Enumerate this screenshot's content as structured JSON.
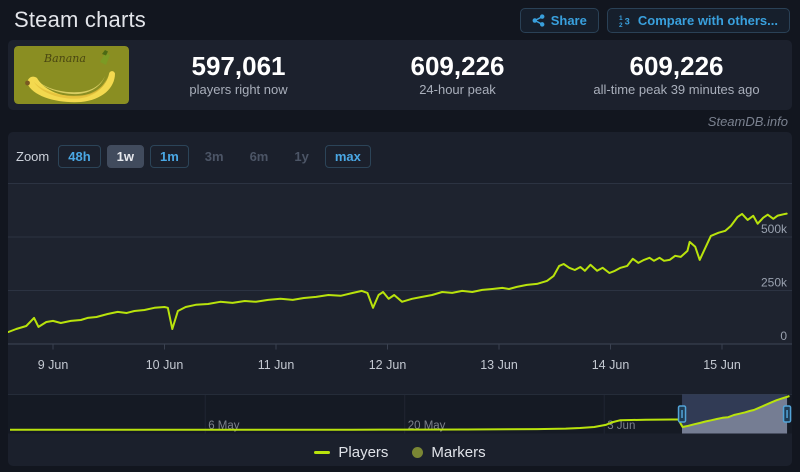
{
  "header": {
    "title": "Steam charts",
    "share_label": "Share",
    "compare_label": "Compare with others..."
  },
  "stats": {
    "app_name": "Banana",
    "items": [
      {
        "value": "597,061",
        "label": "players right now"
      },
      {
        "value": "609,226",
        "label": "24-hour peak"
      },
      {
        "value": "609,226",
        "label": "all-time peak 39 minutes ago"
      }
    ]
  },
  "watermark": "SteamDB.info",
  "zoom_controls": {
    "label": "Zoom",
    "buttons": [
      {
        "label": "48h",
        "state": "enabled"
      },
      {
        "label": "1w",
        "state": "active"
      },
      {
        "label": "1m",
        "state": "enabled"
      },
      {
        "label": "3m",
        "state": "disabled"
      },
      {
        "label": "6m",
        "state": "disabled"
      },
      {
        "label": "1y",
        "state": "disabled"
      },
      {
        "label": "max",
        "state": "enabled"
      }
    ]
  },
  "colors": {
    "background": "#12161f",
    "panel": "#1b202c",
    "accent_blue": "#4aa7e4",
    "line": "#b9e30c",
    "marker_dot": "#7a8634",
    "grid": "#2c3342",
    "capsule_bg": "#8a8e22",
    "banana": "#f3d94f"
  },
  "chart_data": {
    "type": "line",
    "unit": "players",
    "legend": [
      "Players",
      "Markers"
    ],
    "markers_label": "Markers",
    "y_axis": {
      "ticks": [
        {
          "label": "500k",
          "value": 500000
        },
        {
          "label": "250k",
          "value": 250000
        },
        {
          "label": "0",
          "value": 0
        }
      ],
      "top_gridline_value": 750000,
      "ylim": [
        0,
        780000
      ]
    },
    "x_axis": {
      "ticks": [
        {
          "label": "9 Jun",
          "day": 9
        },
        {
          "label": "10 Jun",
          "day": 10
        },
        {
          "label": "11 Jun",
          "day": 11
        },
        {
          "label": "12 Jun",
          "day": 12
        },
        {
          "label": "13 Jun",
          "day": 13
        },
        {
          "label": "14 Jun",
          "day": 14
        },
        {
          "label": "15 Jun",
          "day": 15
        }
      ]
    },
    "series": [
      {
        "name": "Players",
        "color": "#b9e30c",
        "points": [
          [
            8.6,
            56000
          ],
          [
            8.67,
            70000
          ],
          [
            8.76,
            84000
          ],
          [
            8.83,
            122000
          ],
          [
            8.87,
            80000
          ],
          [
            8.94,
            103000
          ],
          [
            9.0,
            108000
          ],
          [
            9.07,
            98000
          ],
          [
            9.16,
            108000
          ],
          [
            9.25,
            112000
          ],
          [
            9.31,
            122000
          ],
          [
            9.39,
            126000
          ],
          [
            9.49,
            140000
          ],
          [
            9.58,
            150000
          ],
          [
            9.66,
            145000
          ],
          [
            9.73,
            154000
          ],
          [
            9.82,
            159000
          ],
          [
            9.91,
            169000
          ],
          [
            10.0,
            173000
          ],
          [
            10.03,
            169000
          ],
          [
            10.07,
            70000
          ],
          [
            10.12,
            154000
          ],
          [
            10.19,
            173000
          ],
          [
            10.28,
            183000
          ],
          [
            10.39,
            187000
          ],
          [
            10.5,
            197000
          ],
          [
            10.61,
            192000
          ],
          [
            10.72,
            201000
          ],
          [
            10.82,
            197000
          ],
          [
            10.93,
            206000
          ],
          [
            11.04,
            211000
          ],
          [
            11.15,
            206000
          ],
          [
            11.25,
            215000
          ],
          [
            11.36,
            220000
          ],
          [
            11.47,
            229000
          ],
          [
            11.58,
            225000
          ],
          [
            11.69,
            239000
          ],
          [
            11.77,
            248000
          ],
          [
            11.82,
            239000
          ],
          [
            11.87,
            169000
          ],
          [
            11.92,
            229000
          ],
          [
            11.96,
            243000
          ],
          [
            12.01,
            211000
          ],
          [
            12.06,
            229000
          ],
          [
            12.13,
            197000
          ],
          [
            12.22,
            211000
          ],
          [
            12.31,
            220000
          ],
          [
            12.4,
            229000
          ],
          [
            12.49,
            243000
          ],
          [
            12.58,
            239000
          ],
          [
            12.67,
            248000
          ],
          [
            12.76,
            243000
          ],
          [
            12.85,
            253000
          ],
          [
            12.94,
            257000
          ],
          [
            13.03,
            262000
          ],
          [
            13.09,
            257000
          ],
          [
            13.16,
            267000
          ],
          [
            13.25,
            276000
          ],
          [
            13.34,
            281000
          ],
          [
            13.43,
            295000
          ],
          [
            13.49,
            318000
          ],
          [
            13.54,
            365000
          ],
          [
            13.58,
            374000
          ],
          [
            13.63,
            356000
          ],
          [
            13.68,
            346000
          ],
          [
            13.73,
            360000
          ],
          [
            13.77,
            342000
          ],
          [
            13.82,
            370000
          ],
          [
            13.88,
            342000
          ],
          [
            13.93,
            356000
          ],
          [
            13.99,
            332000
          ],
          [
            14.04,
            342000
          ],
          [
            14.09,
            356000
          ],
          [
            14.15,
            365000
          ],
          [
            14.2,
            398000
          ],
          [
            14.25,
            379000
          ],
          [
            14.3,
            393000
          ],
          [
            14.35,
            403000
          ],
          [
            14.39,
            389000
          ],
          [
            14.44,
            403000
          ],
          [
            14.48,
            389000
          ],
          [
            14.53,
            393000
          ],
          [
            14.58,
            412000
          ],
          [
            14.63,
            407000
          ],
          [
            14.69,
            435000
          ],
          [
            14.71,
            477000
          ],
          [
            14.76,
            454000
          ],
          [
            14.8,
            393000
          ],
          [
            14.85,
            449000
          ],
          [
            14.9,
            505000
          ],
          [
            14.97,
            520000
          ],
          [
            15.03,
            529000
          ],
          [
            15.08,
            552000
          ],
          [
            15.14,
            594000
          ],
          [
            15.18,
            608000
          ],
          [
            15.23,
            580000
          ],
          [
            15.28,
            599000
          ],
          [
            15.32,
            562000
          ],
          [
            15.37,
            590000
          ],
          [
            15.41,
            604000
          ],
          [
            15.46,
            585000
          ],
          [
            15.5,
            600000
          ],
          [
            15.55,
            606000
          ],
          [
            15.58,
            609226
          ]
        ]
      }
    ],
    "navigator": {
      "ticks": [
        {
          "label": "6 May",
          "day": 13.7
        },
        {
          "label": "20 May",
          "day": 27.7
        },
        {
          "label": "3 Jun",
          "day": 41.7
        }
      ],
      "selection_day_range": [
        47.16,
        54.53
      ],
      "points": [
        [
          0,
          60000
        ],
        [
          6,
          60000
        ],
        [
          12,
          60000
        ],
        [
          18,
          60000
        ],
        [
          24,
          62000
        ],
        [
          28,
          63000
        ],
        [
          32,
          65000
        ],
        [
          35,
          68000
        ],
        [
          37,
          72000
        ],
        [
          39,
          80000
        ],
        [
          40,
          90000
        ],
        [
          41,
          105000
        ],
        [
          41.8,
          140000
        ],
        [
          42.3,
          185000
        ],
        [
          42.8,
          215000
        ],
        [
          43.6,
          220000
        ],
        [
          44.6,
          223000
        ],
        [
          45.6,
          225000
        ],
        [
          46.5,
          227000
        ],
        [
          46.9,
          228000
        ],
        [
          47.2,
          105000
        ],
        [
          47.6,
          125000
        ],
        [
          48,
          150000
        ],
        [
          48.4,
          170000
        ],
        [
          48.8,
          195000
        ],
        [
          49.2,
          215000
        ],
        [
          49.6,
          235000
        ],
        [
          50,
          255000
        ],
        [
          50.4,
          265000
        ],
        [
          50.8,
          300000
        ],
        [
          51.2,
          322000
        ],
        [
          51.6,
          345000
        ],
        [
          51.9,
          365000
        ],
        [
          52.2,
          382000
        ],
        [
          52.6,
          420000
        ],
        [
          53,
          462000
        ],
        [
          53.4,
          502000
        ],
        [
          53.8,
          540000
        ],
        [
          54.2,
          572000
        ],
        [
          54.5,
          592000
        ],
        [
          54.7,
          609000
        ]
      ]
    }
  }
}
